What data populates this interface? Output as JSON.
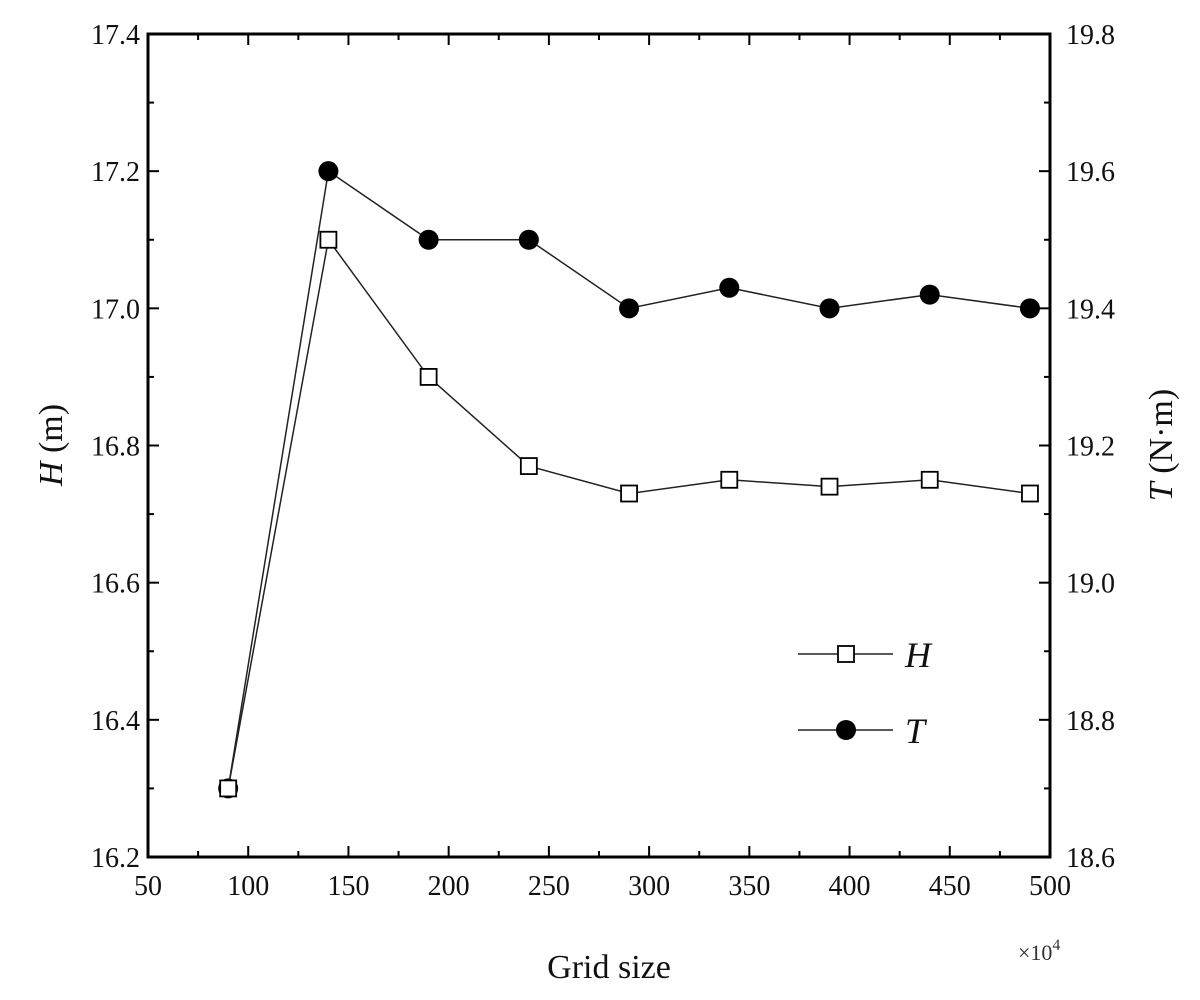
{
  "chart_data": {
    "type": "line",
    "xlabel": "Grid size",
    "x_multiplier": {
      "base": "×10",
      "exponent": "4"
    },
    "xlim": [
      50,
      500
    ],
    "x_ticks": [
      50,
      100,
      150,
      200,
      250,
      300,
      350,
      400,
      450,
      500
    ],
    "x": [
      90,
      140,
      190,
      240,
      290,
      340,
      390,
      440,
      490
    ],
    "y_left": {
      "label_var": "H",
      "label_unit": " (m)",
      "lim": [
        16.2,
        17.4
      ],
      "ticks": [
        "16.2",
        "16.4",
        "16.6",
        "16.8",
        "17.0",
        "17.2",
        "17.4"
      ]
    },
    "y_right": {
      "label_var": "T",
      "label_unit": " (N·m)",
      "lim": [
        18.6,
        19.8
      ],
      "ticks": [
        "18.6",
        "18.8",
        "19.0",
        "19.2",
        "19.4",
        "19.6",
        "19.8"
      ]
    },
    "series": [
      {
        "name": "H",
        "axis": "left",
        "marker": "open-square",
        "values": [
          16.3,
          17.1,
          16.9,
          16.77,
          16.73,
          16.75,
          16.74,
          16.75,
          16.73
        ]
      },
      {
        "name": "T",
        "axis": "right",
        "marker": "filled-circle",
        "values": [
          18.7,
          19.6,
          19.5,
          19.5,
          19.4,
          19.43,
          19.4,
          19.42,
          19.4
        ]
      }
    ],
    "legend_position": "lower-right",
    "grid": false
  }
}
